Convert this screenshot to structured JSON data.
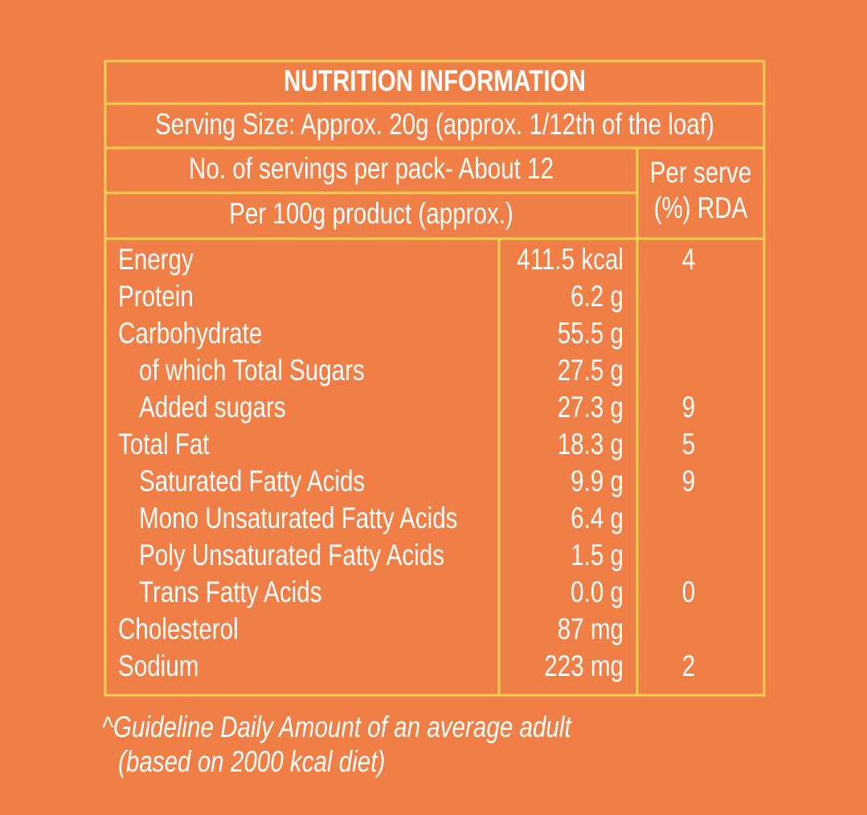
{
  "title": "NUTRITION INFORMATION",
  "serving_size": "Serving Size: Approx. 20g (approx. 1/12th of the loaf)",
  "servings_per_pack": "No. of servings per pack- About 12",
  "per_100g_header": "Per 100g product (approx.)",
  "rda_header": [
    "Per serve",
    "(%) RDA"
  ],
  "rows": [
    {
      "nutrient": "Energy",
      "amount": "411.5 kcal",
      "rda": 4
    },
    {
      "nutrient": "Protein",
      "amount": "6.2 g",
      "rda": null
    },
    {
      "nutrient": "Carbohydrate",
      "amount": "55.5 g",
      "rda": null
    },
    {
      "nutrient": "of which Total Sugars",
      "amount": "27.5 g",
      "rda": null
    },
    {
      "nutrient": "Added sugars",
      "amount": "27.3 g",
      "rda": 9
    },
    {
      "nutrient": "Total Fat",
      "amount": "18.3 g",
      "rda": 5
    },
    {
      "nutrient": "Saturated Fatty Acids",
      "amount": "9.9 g",
      "rda": 9
    },
    {
      "nutrient": "Mono Unsaturated Fatty Acids",
      "amount": "6.4 g",
      "rda": null
    },
    {
      "nutrient": "Poly Unsaturated Fatty Acids",
      "amount": "1.5 g",
      "rda": null
    },
    {
      "nutrient": "Trans Fatty Acids",
      "amount": "0.0 g",
      "rda": 0
    },
    {
      "nutrient": "Cholesterol",
      "amount": "87 mg",
      "rda": null
    },
    {
      "nutrient": "Sodium",
      "amount": "223 mg",
      "rda": 2
    }
  ],
  "footnote": [
    "^Guideline Daily Amount of an average adult",
    "(based on 2000 kcal diet)"
  ]
}
